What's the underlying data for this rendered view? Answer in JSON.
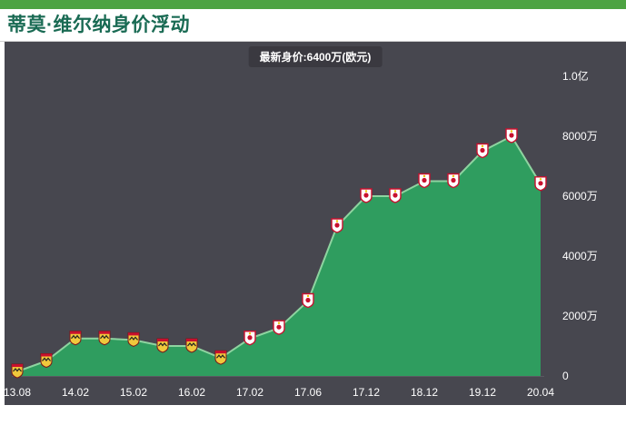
{
  "page": {
    "title": "蒂莫·维尔纳身价浮动"
  },
  "tooltip": {
    "label": "最新身价:6400万(欧元)"
  },
  "colors": {
    "accent_bar": "#4da342",
    "title_text": "#1a6b54",
    "panel_bg": "#47474f",
    "area_fill": "#2f9d5f",
    "line": "#8ed4a0",
    "axis_text": "#ffffff",
    "stuttgart_badge": "#f0c83c",
    "leipzig_badge": "#ffffff",
    "badge_red": "#c8102e"
  },
  "chart_data": {
    "type": "area",
    "title": "最新身价:6400万(欧元)",
    "unit": "万(欧元)",
    "latest_value": 6400,
    "ylim": [
      0,
      10000
    ],
    "legend": "none",
    "grid": false,
    "x_tick_labels": [
      "13.08",
      "14.02",
      "15.02",
      "16.02",
      "17.02",
      "17.06",
      "17.12",
      "18.12",
      "19.12",
      "20.04"
    ],
    "y_ticks": [
      {
        "value": 0,
        "label": "0"
      },
      {
        "value": 2000,
        "label": "2000万"
      },
      {
        "value": 4000,
        "label": "4000万"
      },
      {
        "value": 6000,
        "label": "6000万"
      },
      {
        "value": 8000,
        "label": "8000万"
      },
      {
        "value": 10000,
        "label": "1.0亿"
      }
    ],
    "points": [
      {
        "x_label": "13.08",
        "value": 150,
        "club": "stuttgart"
      },
      {
        "x_label": "",
        "value": 500,
        "club": "stuttgart"
      },
      {
        "x_label": "14.02",
        "value": 1250,
        "club": "stuttgart"
      },
      {
        "x_label": "",
        "value": 1250,
        "club": "stuttgart"
      },
      {
        "x_label": "15.02",
        "value": 1200,
        "club": "stuttgart"
      },
      {
        "x_label": "",
        "value": 1000,
        "club": "stuttgart"
      },
      {
        "x_label": "16.02",
        "value": 1000,
        "club": "stuttgart"
      },
      {
        "x_label": "",
        "value": 600,
        "club": "stuttgart"
      },
      {
        "x_label": "17.02",
        "value": 1250,
        "club": "leipzig"
      },
      {
        "x_label": "",
        "value": 1600,
        "club": "leipzig"
      },
      {
        "x_label": "17.06",
        "value": 2500,
        "club": "leipzig"
      },
      {
        "x_label": "",
        "value": 5000,
        "club": "leipzig"
      },
      {
        "x_label": "17.12",
        "value": 6000,
        "club": "leipzig"
      },
      {
        "x_label": "",
        "value": 6000,
        "club": "leipzig"
      },
      {
        "x_label": "18.12",
        "value": 6500,
        "club": "leipzig"
      },
      {
        "x_label": "",
        "value": 6500,
        "club": "leipzig"
      },
      {
        "x_label": "19.12",
        "value": 7500,
        "club": "leipzig"
      },
      {
        "x_label": "",
        "value": 8000,
        "club": "leipzig"
      },
      {
        "x_label": "20.04",
        "value": 6400,
        "club": "leipzig"
      }
    ]
  }
}
